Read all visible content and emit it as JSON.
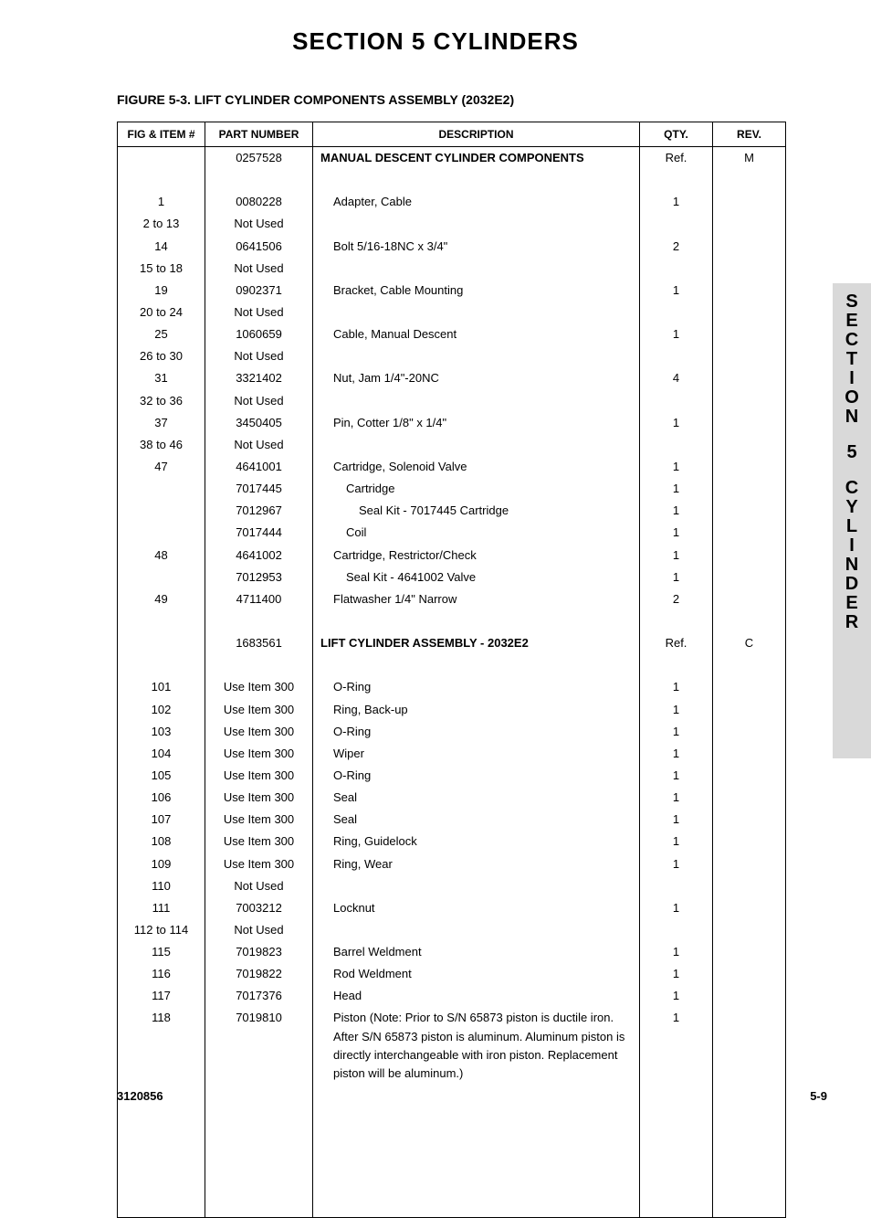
{
  "page": {
    "section_title": "SECTION 5    CYLINDERS",
    "figure_title": "FIGURE 5-3.  LIFT CYLINDER COMPONENTS ASSEMBLY (2032E2)",
    "doc_number": "3120856",
    "page_number": "5-9",
    "side_tab_line1": "SECTION",
    "side_tab_mid": "5",
    "side_tab_line2": "CYLINDER"
  },
  "table": {
    "headers": {
      "fig": "FIG & ITEM #",
      "part": "PART NUMBER",
      "desc": "DESCRIPTION",
      "qty": "QTY.",
      "rev": "REV."
    },
    "rows": [
      {
        "fig": "",
        "part": "0257528",
        "desc": "MANUAL DESCENT CYLINDER COMPONENTS",
        "qty": "Ref.",
        "rev": "M",
        "bold": true,
        "indent": 0
      },
      {
        "spacer": true
      },
      {
        "fig": "1",
        "part": "0080228",
        "desc": "Adapter, Cable",
        "qty": "1",
        "rev": "",
        "indent": 1
      },
      {
        "fig": "2 to 13",
        "part": "Not Used",
        "desc": "",
        "qty": "",
        "rev": "",
        "indent": 0
      },
      {
        "fig": "14",
        "part": "0641506",
        "desc": "Bolt 5/16-18NC x 3/4\"",
        "qty": "2",
        "rev": "",
        "indent": 1
      },
      {
        "fig": "15 to 18",
        "part": "Not Used",
        "desc": "",
        "qty": "",
        "rev": "",
        "indent": 0
      },
      {
        "fig": "19",
        "part": "0902371",
        "desc": "Bracket, Cable Mounting",
        "qty": "1",
        "rev": "",
        "indent": 1
      },
      {
        "fig": "20 to 24",
        "part": "Not Used",
        "desc": "",
        "qty": "",
        "rev": "",
        "indent": 0
      },
      {
        "fig": "25",
        "part": "1060659",
        "desc": "Cable, Manual Descent",
        "qty": "1",
        "rev": "",
        "indent": 1
      },
      {
        "fig": "26 to 30",
        "part": "Not Used",
        "desc": "",
        "qty": "",
        "rev": "",
        "indent": 0
      },
      {
        "fig": "31",
        "part": "3321402",
        "desc": "Nut, Jam 1/4\"-20NC",
        "qty": "4",
        "rev": "",
        "indent": 1
      },
      {
        "fig": "32 to 36",
        "part": "Not Used",
        "desc": "",
        "qty": "",
        "rev": "",
        "indent": 0
      },
      {
        "fig": "37",
        "part": "3450405",
        "desc": "Pin, Cotter 1/8\" x 1/4\"",
        "qty": "1",
        "rev": "",
        "indent": 1
      },
      {
        "fig": "38 to 46",
        "part": "Not Used",
        "desc": "",
        "qty": "",
        "rev": "",
        "indent": 0
      },
      {
        "fig": "47",
        "part": "4641001",
        "desc": "Cartridge, Solenoid Valve",
        "qty": "1",
        "rev": "",
        "indent": 1
      },
      {
        "fig": "",
        "part": "7017445",
        "desc": "Cartridge",
        "qty": "1",
        "rev": "",
        "indent": 2
      },
      {
        "fig": "",
        "part": "7012967",
        "desc": "Seal Kit - 7017445 Cartridge",
        "qty": "1",
        "rev": "",
        "indent": 3
      },
      {
        "fig": "",
        "part": "7017444",
        "desc": "Coil",
        "qty": "1",
        "rev": "",
        "indent": 2
      },
      {
        "fig": "48",
        "part": "4641002",
        "desc": "Cartridge, Restrictor/Check",
        "qty": "1",
        "rev": "",
        "indent": 1
      },
      {
        "fig": "",
        "part": "7012953",
        "desc": "Seal Kit - 4641002 Valve",
        "qty": "1",
        "rev": "",
        "indent": 2
      },
      {
        "fig": "49",
        "part": "4711400",
        "desc": "Flatwasher 1/4\" Narrow",
        "qty": "2",
        "rev": "",
        "indent": 1
      },
      {
        "spacer": true
      },
      {
        "fig": "",
        "part": "1683561",
        "desc": "LIFT CYLINDER ASSEMBLY - 2032E2",
        "qty": "Ref.",
        "rev": "C",
        "bold": true,
        "indent": 0
      },
      {
        "spacer": true
      },
      {
        "fig": "101",
        "part": "Use Item 300",
        "desc": "O-Ring",
        "qty": "1",
        "rev": "",
        "indent": 1
      },
      {
        "fig": "102",
        "part": "Use Item 300",
        "desc": "Ring, Back-up",
        "qty": "1",
        "rev": "",
        "indent": 1
      },
      {
        "fig": "103",
        "part": "Use Item 300",
        "desc": "O-Ring",
        "qty": "1",
        "rev": "",
        "indent": 1
      },
      {
        "fig": "104",
        "part": "Use Item 300",
        "desc": "Wiper",
        "qty": "1",
        "rev": "",
        "indent": 1
      },
      {
        "fig": "105",
        "part": "Use Item 300",
        "desc": "O-Ring",
        "qty": "1",
        "rev": "",
        "indent": 1
      },
      {
        "fig": "106",
        "part": "Use Item 300",
        "desc": "Seal",
        "qty": "1",
        "rev": "",
        "indent": 1
      },
      {
        "fig": "107",
        "part": "Use Item 300",
        "desc": "Seal",
        "qty": "1",
        "rev": "",
        "indent": 1
      },
      {
        "fig": "108",
        "part": "Use Item 300",
        "desc": "Ring, Guidelock",
        "qty": "1",
        "rev": "",
        "indent": 1
      },
      {
        "fig": "109",
        "part": "Use Item 300",
        "desc": "Ring, Wear",
        "qty": "1",
        "rev": "",
        "indent": 1
      },
      {
        "fig": "110",
        "part": "Not Used",
        "desc": "",
        "qty": "",
        "rev": "",
        "indent": 0
      },
      {
        "fig": "111",
        "part": "7003212",
        "desc": "Locknut",
        "qty": "1",
        "rev": "",
        "indent": 1
      },
      {
        "fig": "112 to 114",
        "part": "Not Used",
        "desc": "",
        "qty": "",
        "rev": "",
        "indent": 0
      },
      {
        "fig": "115",
        "part": "7019823",
        "desc": "Barrel Weldment",
        "qty": "1",
        "rev": "",
        "indent": 1
      },
      {
        "fig": "116",
        "part": "7019822",
        "desc": "Rod Weldment",
        "qty": "1",
        "rev": "",
        "indent": 1
      },
      {
        "fig": "117",
        "part": "7017376",
        "desc": "Head",
        "qty": "1",
        "rev": "",
        "indent": 1
      },
      {
        "fig": "118",
        "part": "7019810",
        "desc": "Piston (Note: Prior to S/N 65873 piston is ductile iron. After S/N 65873 piston is aluminum. Aluminum piston is directly interchangeable with iron piston. Replacement piston will be aluminum.)",
        "qty": "1",
        "rev": "",
        "indent": 1
      }
    ],
    "filler_rows": 6
  }
}
